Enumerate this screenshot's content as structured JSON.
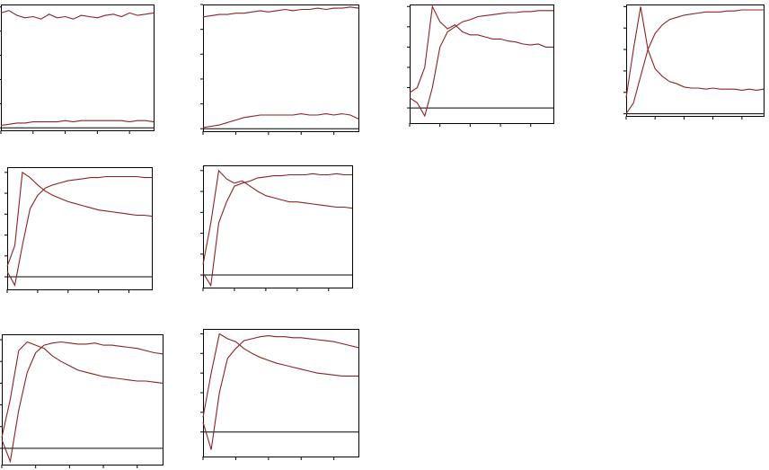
{
  "chart_data": [
    {
      "type": "line",
      "x": [
        0,
        1,
        2,
        3,
        4,
        5,
        6,
        7,
        8,
        9,
        10,
        11,
        12,
        13,
        14,
        15,
        16,
        17,
        18,
        19
      ],
      "xlim": [
        0,
        19
      ],
      "ylim": [
        -0.02,
        1.02
      ],
      "xticks": [
        0,
        4,
        8,
        12,
        16
      ],
      "yticks": [
        0,
        0.2,
        0.4,
        0.6,
        0.8,
        1
      ],
      "series": [
        {
          "color": "#8b2323",
          "values": [
            0.95,
            0.97,
            0.93,
            0.91,
            0.92,
            0.9,
            0.94,
            0.91,
            0.92,
            0.9,
            0.93,
            0.92,
            0.91,
            0.93,
            0.94,
            0.92,
            0.95,
            0.93,
            0.94,
            0.95
          ]
        },
        {
          "color": "#8b2323",
          "values": [
            0.02,
            0.03,
            0.04,
            0.04,
            0.05,
            0.05,
            0.05,
            0.05,
            0.06,
            0.05,
            0.06,
            0.06,
            0.06,
            0.06,
            0.06,
            0.06,
            0.05,
            0.06,
            0.06,
            0.05
          ]
        }
      ]
    },
    {
      "type": "line",
      "x": [
        0,
        1,
        2,
        3,
        4,
        5,
        6,
        7,
        8,
        9,
        10,
        11,
        12,
        13,
        14,
        15,
        16,
        17,
        18,
        19
      ],
      "xlim": [
        0,
        19
      ],
      "ylim": [
        -0.02,
        1.0
      ],
      "xticks": [
        0,
        4,
        8,
        12,
        16
      ],
      "yticks": [
        0,
        0.2,
        0.4,
        0.6,
        0.8,
        1
      ],
      "series": [
        {
          "color": "#8b2323",
          "values": [
            0.9,
            0.91,
            0.92,
            0.92,
            0.93,
            0.93,
            0.94,
            0.95,
            0.94,
            0.95,
            0.96,
            0.95,
            0.96,
            0.96,
            0.97,
            0.96,
            0.97,
            0.97,
            0.98,
            0.97
          ]
        },
        {
          "color": "#8b2323",
          "values": [
            0.01,
            0.02,
            0.03,
            0.05,
            0.07,
            0.09,
            0.1,
            0.11,
            0.11,
            0.11,
            0.11,
            0.11,
            0.12,
            0.11,
            0.11,
            0.12,
            0.11,
            0.12,
            0.11,
            0.08
          ]
        }
      ]
    },
    {
      "type": "line",
      "x": [
        0,
        1,
        2,
        3,
        4,
        5,
        6,
        7,
        8,
        9,
        10,
        11,
        12,
        13,
        14,
        15,
        16,
        17,
        18,
        19
      ],
      "xlim": [
        0,
        19
      ],
      "ylim": [
        -0.15,
        1.02
      ],
      "xticks": [
        0,
        4,
        8,
        12,
        16
      ],
      "yticks": [
        0,
        0.2,
        0.4,
        0.6,
        0.8,
        1
      ],
      "series": [
        {
          "color": "#8b2323",
          "values": [
            0.1,
            0.05,
            -0.08,
            0.2,
            0.6,
            0.75,
            0.8,
            0.85,
            0.87,
            0.9,
            0.91,
            0.92,
            0.93,
            0.94,
            0.94,
            0.95,
            0.95,
            0.96,
            0.96,
            0.96
          ]
        },
        {
          "color": "#8b2323",
          "values": [
            0.15,
            0.2,
            0.4,
            1.0,
            0.85,
            0.78,
            0.82,
            0.75,
            0.72,
            0.72,
            0.7,
            0.68,
            0.68,
            0.66,
            0.65,
            0.63,
            0.62,
            0.63,
            0.6,
            0.6
          ]
        }
      ]
    },
    {
      "type": "line",
      "x": [
        0,
        1,
        2,
        3,
        4,
        5,
        6,
        7,
        8,
        9,
        10,
        11,
        12,
        13,
        14,
        15,
        16,
        17,
        18,
        19
      ],
      "xlim": [
        0,
        19
      ],
      "ylim": [
        -0.02,
        1.02
      ],
      "xticks": [
        0,
        4,
        8,
        12,
        16
      ],
      "yticks": [
        0,
        0.2,
        0.4,
        0.6,
        0.8,
        1
      ],
      "series": [
        {
          "color": "#8b2323",
          "values": [
            0.0,
            0.1,
            0.35,
            0.6,
            0.75,
            0.83,
            0.88,
            0.9,
            0.92,
            0.93,
            0.94,
            0.95,
            0.95,
            0.95,
            0.96,
            0.96,
            0.97,
            0.97,
            0.97,
            0.97
          ]
        },
        {
          "color": "#8b2323",
          "values": [
            0.15,
            0.6,
            1.0,
            0.6,
            0.42,
            0.35,
            0.3,
            0.28,
            0.25,
            0.24,
            0.24,
            0.23,
            0.24,
            0.23,
            0.23,
            0.23,
            0.22,
            0.23,
            0.22,
            0.23
          ]
        }
      ]
    },
    {
      "type": "line",
      "x": [
        0,
        1,
        2,
        3,
        4,
        5,
        6,
        7,
        8,
        9,
        10,
        11,
        12,
        13,
        14,
        15,
        16,
        17,
        18,
        19
      ],
      "xlim": [
        0,
        19
      ],
      "ylim": [
        -0.12,
        1.05
      ],
      "xticks": [
        0,
        4,
        8,
        12,
        16
      ],
      "yticks": [
        0,
        0.2,
        0.4,
        0.6,
        0.8,
        1
      ],
      "series": [
        {
          "color": "#8b2323",
          "values": [
            0.05,
            -0.08,
            0.3,
            0.65,
            0.78,
            0.85,
            0.88,
            0.9,
            0.92,
            0.93,
            0.94,
            0.95,
            0.95,
            0.96,
            0.96,
            0.96,
            0.96,
            0.96,
            0.95,
            0.95
          ]
        },
        {
          "color": "#8b2323",
          "values": [
            0.1,
            0.3,
            1.0,
            0.95,
            0.88,
            0.82,
            0.78,
            0.75,
            0.72,
            0.7,
            0.68,
            0.66,
            0.64,
            0.63,
            0.62,
            0.61,
            0.6,
            0.59,
            0.59,
            0.58
          ]
        }
      ]
    },
    {
      "type": "line",
      "x": [
        0,
        1,
        2,
        3,
        4,
        5,
        6,
        7,
        8,
        9,
        10,
        11,
        12,
        13,
        14,
        15,
        16,
        17,
        18,
        19
      ],
      "xlim": [
        0,
        19
      ],
      "ylim": [
        -0.12,
        1.05
      ],
      "xticks": [
        0,
        4,
        8,
        12,
        16
      ],
      "yticks": [
        0,
        0.2,
        0.4,
        0.6,
        0.8,
        1
      ],
      "series": [
        {
          "color": "#8b2323",
          "values": [
            0.02,
            -0.1,
            0.5,
            0.7,
            0.85,
            0.88,
            0.9,
            0.93,
            0.94,
            0.95,
            0.95,
            0.96,
            0.96,
            0.96,
            0.97,
            0.96,
            0.96,
            0.97,
            0.96,
            0.96
          ]
        },
        {
          "color": "#8b2323",
          "values": [
            0.1,
            0.5,
            1.0,
            0.92,
            0.88,
            0.9,
            0.85,
            0.8,
            0.76,
            0.74,
            0.72,
            0.7,
            0.7,
            0.69,
            0.68,
            0.67,
            0.66,
            0.65,
            0.65,
            0.64
          ]
        }
      ]
    },
    {
      "type": "line",
      "x": [
        0,
        1,
        2,
        3,
        4,
        5,
        6,
        7,
        8,
        9,
        10,
        11,
        12,
        13,
        14,
        15,
        16,
        17,
        18,
        19
      ],
      "xlim": [
        0,
        19
      ],
      "ylim": [
        -0.15,
        1.05
      ],
      "xticks": [
        0,
        4,
        8,
        12,
        16
      ],
      "yticks": [
        0,
        0.2,
        0.4,
        0.6,
        0.8,
        1
      ],
      "series": [
        {
          "color": "#8b2323",
          "values": [
            0.08,
            -0.12,
            0.35,
            0.7,
            0.88,
            0.95,
            0.97,
            0.98,
            0.97,
            0.96,
            0.96,
            0.97,
            0.95,
            0.95,
            0.94,
            0.93,
            0.92,
            0.9,
            0.88,
            0.87
          ]
        },
        {
          "color": "#8b2323",
          "values": [
            0.1,
            0.45,
            0.9,
            0.98,
            0.95,
            0.92,
            0.85,
            0.8,
            0.76,
            0.72,
            0.7,
            0.68,
            0.66,
            0.65,
            0.64,
            0.63,
            0.62,
            0.62,
            0.61,
            0.6
          ]
        }
      ]
    },
    {
      "type": "line",
      "x": [
        0,
        1,
        2,
        3,
        4,
        5,
        6,
        7,
        8,
        9,
        10,
        11,
        12,
        13,
        14,
        15,
        16,
        17,
        18,
        19
      ],
      "xlim": [
        0,
        19
      ],
      "ylim": [
        -0.25,
        1.05
      ],
      "xticks": [
        0,
        4,
        8,
        12,
        16
      ],
      "yticks": [
        0,
        0.2,
        0.4,
        0.6,
        0.8,
        1
      ],
      "series": [
        {
          "color": "#8b2323",
          "values": [
            0.1,
            -0.18,
            0.4,
            0.75,
            0.85,
            0.93,
            0.95,
            0.97,
            0.98,
            0.97,
            0.97,
            0.96,
            0.96,
            0.95,
            0.94,
            0.93,
            0.92,
            0.9,
            0.88,
            0.86
          ]
        },
        {
          "color": "#8b2323",
          "values": [
            0.15,
            0.6,
            1.0,
            0.95,
            0.92,
            0.85,
            0.8,
            0.76,
            0.73,
            0.7,
            0.68,
            0.66,
            0.64,
            0.62,
            0.6,
            0.59,
            0.58,
            0.57,
            0.57,
            0.57
          ]
        }
      ]
    }
  ]
}
